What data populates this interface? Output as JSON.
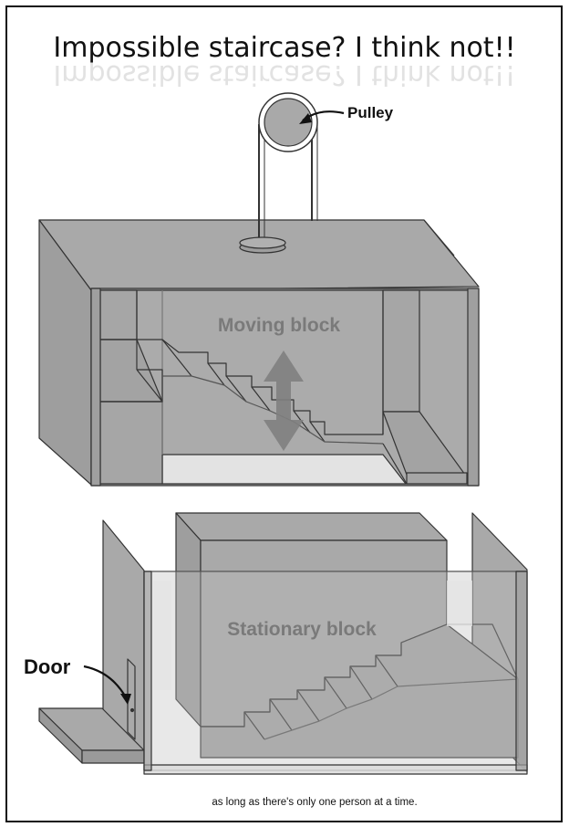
{
  "title": "Impossible staircase?   I think not!!",
  "labels": {
    "pulley": "Pulley",
    "moving_block": "Moving block",
    "stationary_block": "Stationary block",
    "door": "Door"
  },
  "caption": "as long as there's only one person at a time.",
  "colors": {
    "block_fill": "#a9a9a9",
    "block_dark": "#9a9a9a",
    "outline": "#333333",
    "floor_light": "#e3e3e3",
    "arrow": "#7f7f7f",
    "label_gray": "#7a7a7a"
  }
}
